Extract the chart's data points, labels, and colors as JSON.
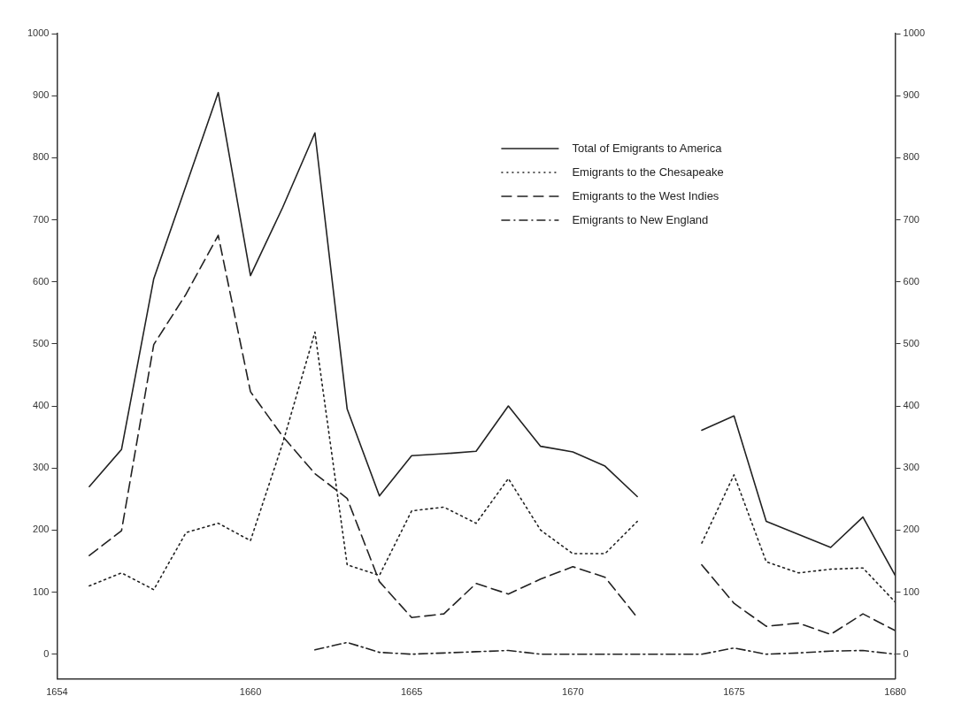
{
  "chart_data": {
    "type": "line",
    "xlim": [
      1654,
      1680
    ],
    "xticks": [
      1654,
      1660,
      1665,
      1670,
      1675,
      1680
    ],
    "ylim": [
      -40,
      1000
    ],
    "yticks": [
      0,
      100,
      200,
      300,
      400,
      500,
      600,
      700,
      800,
      900,
      1000
    ],
    "y2lim": [
      -40,
      1000
    ],
    "y2ticks": [
      0,
      100,
      200,
      300,
      400,
      500,
      600,
      700,
      800,
      900,
      1000
    ],
    "grid": false,
    "legend": "top",
    "marker": "none",
    "series": [
      {
        "name": "Total of Emigrants to America",
        "color": "#222222",
        "line_style": "solid",
        "x": [
          1655,
          1656,
          1657,
          1658,
          1659,
          1660,
          1661,
          1662,
          1663,
          1664,
          1665,
          1666,
          1667,
          1668,
          1669,
          1670,
          1671,
          1672,
          1673,
          1674,
          1675,
          1676,
          1678,
          1679,
          1680
        ],
        "values": [
          270,
          330,
          605,
          755,
          905,
          610,
          720,
          840,
          395,
          255,
          320,
          323,
          327,
          400,
          335,
          326,
          303,
          254,
          null,
          361,
          384,
          214,
          172,
          221,
          127
        ]
      },
      {
        "name": "Emigrants to the Chesapeake",
        "color": "#222222",
        "line_style": "dotted",
        "x": [
          1655,
          1656,
          1657,
          1658,
          1659,
          1660,
          1661,
          1662,
          1663,
          1664,
          1665,
          1666,
          1667,
          1668,
          1669,
          1670,
          1671,
          1672,
          1673,
          1674,
          1675,
          1676,
          1677,
          1678,
          1679,
          1680
        ],
        "values": [
          110,
          131,
          104,
          196,
          211,
          183,
          340,
          519,
          144,
          127,
          231,
          237,
          211,
          283,
          200,
          162,
          162,
          214,
          null,
          179,
          289,
          149,
          131,
          137,
          139,
          84
        ]
      },
      {
        "name": "Emigrants to the West Indies",
        "color": "#222222",
        "line_style": "dashed",
        "x": [
          1655,
          1656,
          1657,
          1658,
          1659,
          1660,
          1661,
          1662,
          1663,
          1664,
          1665,
          1666,
          1667,
          1668,
          1669,
          1670,
          1671,
          1672,
          1673,
          1674,
          1675,
          1676,
          1677,
          1678,
          1679,
          1680
        ],
        "values": [
          159,
          199,
          499,
          580,
          675,
          423,
          351,
          291,
          251,
          117,
          59,
          65,
          114,
          97,
          121,
          141,
          124,
          59,
          null,
          144,
          82,
          45,
          50,
          32,
          65,
          38
        ]
      },
      {
        "name": "Emigrants to New England",
        "color": "#222222",
        "line_style": "dashdot",
        "x": [
          1662,
          1663,
          1664,
          1665,
          1666,
          1667,
          1668,
          1669,
          1670,
          1671,
          1672,
          1673,
          1674,
          1675,
          1676,
          1677,
          1678,
          1679,
          1680
        ],
        "values": [
          7,
          19,
          3,
          0,
          2,
          4,
          6,
          0,
          0,
          0,
          0,
          0,
          0,
          10,
          0,
          2,
          5,
          6,
          0
        ]
      }
    ]
  }
}
